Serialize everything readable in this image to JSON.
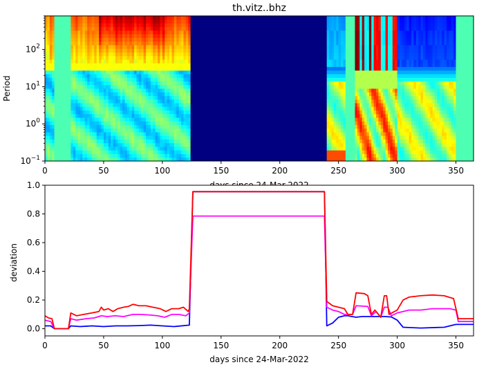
{
  "chart_data": [
    {
      "type": "heatmap",
      "title": "th.vitz..bhz",
      "xlabel": "days since 24-Mar-2022",
      "ylabel": "Period",
      "xlim": [
        0,
        365
      ],
      "ylim": [
        0.1,
        800
      ],
      "yscale": "log",
      "x_ticks": [
        "0",
        "50",
        "100",
        "150",
        "200",
        "250",
        "300",
        "350"
      ],
      "y_ticks": [
        {
          "base": "10",
          "exp": "−1",
          "value": 0.1
        },
        {
          "base": "10",
          "exp": "0",
          "value": 1
        },
        {
          "base": "10",
          "exp": "1",
          "value": 10
        },
        {
          "base": "10",
          "exp": "2",
          "value": 100
        }
      ],
      "colormap": "jet",
      "regions": [
        {
          "x0": 0,
          "x1": 8,
          "pattern": "warm",
          "peak": 0.78
        },
        {
          "x0": 8,
          "x1": 22,
          "pattern": "flat",
          "level": 0.45
        },
        {
          "x0": 22,
          "x1": 47,
          "pattern": "warm",
          "peak": 0.82
        },
        {
          "x0": 47,
          "x1": 105,
          "pattern": "warm",
          "peak": 0.95
        },
        {
          "x0": 105,
          "x1": 125,
          "pattern": "warm",
          "peak": 0.86
        },
        {
          "x0": 125,
          "x1": 240,
          "pattern": "flat",
          "level": 0.0
        },
        {
          "x0": 240,
          "x1": 257,
          "pattern": "cool",
          "peak": 0.25
        },
        {
          "x0": 257,
          "x1": 265,
          "pattern": "flat",
          "level": 0.45
        },
        {
          "x0": 265,
          "x1": 278,
          "pattern": "burst",
          "peak": 0.97
        },
        {
          "x0": 278,
          "x1": 300,
          "pattern": "burst",
          "peak": 0.85
        },
        {
          "x0": 300,
          "x1": 350,
          "pattern": "cool",
          "peak": 0.12
        },
        {
          "x0": 350,
          "x1": 365,
          "pattern": "flat",
          "level": 0.45
        }
      ]
    },
    {
      "type": "line",
      "xlabel": "days since 24-Mar-2022",
      "ylabel": "deviation",
      "xlim": [
        0,
        365
      ],
      "ylim": [
        -0.05,
        1.0
      ],
      "x_ticks": [
        "0",
        "50",
        "100",
        "150",
        "200",
        "250",
        "300",
        "350"
      ],
      "y_ticks": [
        "0.0",
        "0.2",
        "0.4",
        "0.6",
        "0.8",
        "1.0"
      ],
      "series": [
        {
          "color": "#0000ff",
          "points": [
            [
              0,
              0.02
            ],
            [
              5,
              0.02
            ],
            [
              8,
              0.0
            ],
            [
              20,
              0.0
            ],
            [
              22,
              0.02
            ],
            [
              30,
              0.015
            ],
            [
              40,
              0.02
            ],
            [
              50,
              0.015
            ],
            [
              60,
              0.02
            ],
            [
              70,
              0.02
            ],
            [
              80,
              0.022
            ],
            [
              90,
              0.025
            ],
            [
              100,
              0.02
            ],
            [
              110,
              0.015
            ],
            [
              123,
              0.025
            ],
            [
              126,
              0.955
            ],
            [
              238,
              0.955
            ],
            [
              240,
              0.02
            ],
            [
              245,
              0.04
            ],
            [
              250,
              0.08
            ],
            [
              255,
              0.09
            ],
            [
              258,
              0.09
            ],
            [
              265,
              0.08
            ],
            [
              270,
              0.085
            ],
            [
              280,
              0.085
            ],
            [
              290,
              0.085
            ],
            [
              295,
              0.082
            ],
            [
              300,
              0.06
            ],
            [
              305,
              0.01
            ],
            [
              320,
              0.005
            ],
            [
              340,
              0.01
            ],
            [
              350,
              0.03
            ],
            [
              365,
              0.03
            ]
          ]
        },
        {
          "color": "#ff00ff",
          "points": [
            [
              0,
              0.06
            ],
            [
              5,
              0.05
            ],
            [
              8,
              0.0
            ],
            [
              20,
              0.0
            ],
            [
              22,
              0.07
            ],
            [
              27,
              0.06
            ],
            [
              35,
              0.07
            ],
            [
              42,
              0.075
            ],
            [
              48,
              0.09
            ],
            [
              53,
              0.085
            ],
            [
              60,
              0.09
            ],
            [
              67,
              0.085
            ],
            [
              75,
              0.1
            ],
            [
              82,
              0.1
            ],
            [
              90,
              0.095
            ],
            [
              96,
              0.09
            ],
            [
              102,
              0.08
            ],
            [
              108,
              0.1
            ],
            [
              114,
              0.1
            ],
            [
              120,
              0.09
            ],
            [
              123,
              0.11
            ],
            [
              126,
              0.785
            ],
            [
              238,
              0.785
            ],
            [
              240,
              0.15
            ],
            [
              245,
              0.13
            ],
            [
              250,
              0.12
            ],
            [
              255,
              0.1
            ],
            [
              258,
              0.1
            ],
            [
              262,
              0.1
            ],
            [
              265,
              0.16
            ],
            [
              275,
              0.155
            ],
            [
              278,
              0.09
            ],
            [
              282,
              0.12
            ],
            [
              286,
              0.08
            ],
            [
              289,
              0.15
            ],
            [
              292,
              0.15
            ],
            [
              295,
              0.09
            ],
            [
              300,
              0.11
            ],
            [
              305,
              0.12
            ],
            [
              310,
              0.13
            ],
            [
              320,
              0.13
            ],
            [
              330,
              0.14
            ],
            [
              340,
              0.14
            ],
            [
              345,
              0.14
            ],
            [
              350,
              0.13
            ],
            [
              352,
              0.05
            ],
            [
              365,
              0.05
            ]
          ]
        },
        {
          "color": "#ff0000",
          "points": [
            [
              0,
              0.09
            ],
            [
              3,
              0.075
            ],
            [
              6,
              0.07
            ],
            [
              8,
              0.0
            ],
            [
              20,
              0.0
            ],
            [
              22,
              0.11
            ],
            [
              27,
              0.09
            ],
            [
              33,
              0.1
            ],
            [
              40,
              0.11
            ],
            [
              46,
              0.12
            ],
            [
              48,
              0.15
            ],
            [
              50,
              0.13
            ],
            [
              54,
              0.14
            ],
            [
              58,
              0.12
            ],
            [
              62,
              0.14
            ],
            [
              67,
              0.15
            ],
            [
              71,
              0.155
            ],
            [
              75,
              0.17
            ],
            [
              80,
              0.16
            ],
            [
              86,
              0.16
            ],
            [
              92,
              0.15
            ],
            [
              98,
              0.14
            ],
            [
              103,
              0.12
            ],
            [
              108,
              0.14
            ],
            [
              114,
              0.14
            ],
            [
              118,
              0.15
            ],
            [
              122,
              0.12
            ],
            [
              123,
              0.14
            ],
            [
              126,
              0.955
            ],
            [
              238,
              0.955
            ],
            [
              240,
              0.19
            ],
            [
              245,
              0.16
            ],
            [
              250,
              0.15
            ],
            [
              255,
              0.14
            ],
            [
              258,
              0.1
            ],
            [
              262,
              0.1
            ],
            [
              265,
              0.25
            ],
            [
              272,
              0.245
            ],
            [
              275,
              0.23
            ],
            [
              278,
              0.1
            ],
            [
              281,
              0.13
            ],
            [
              284,
              0.1
            ],
            [
              286,
              0.08
            ],
            [
              289,
              0.23
            ],
            [
              291,
              0.23
            ],
            [
              293,
              0.1
            ],
            [
              300,
              0.13
            ],
            [
              305,
              0.2
            ],
            [
              310,
              0.22
            ],
            [
              320,
              0.23
            ],
            [
              330,
              0.235
            ],
            [
              340,
              0.23
            ],
            [
              348,
              0.21
            ],
            [
              352,
              0.07
            ],
            [
              365,
              0.07
            ]
          ]
        }
      ]
    }
  ]
}
